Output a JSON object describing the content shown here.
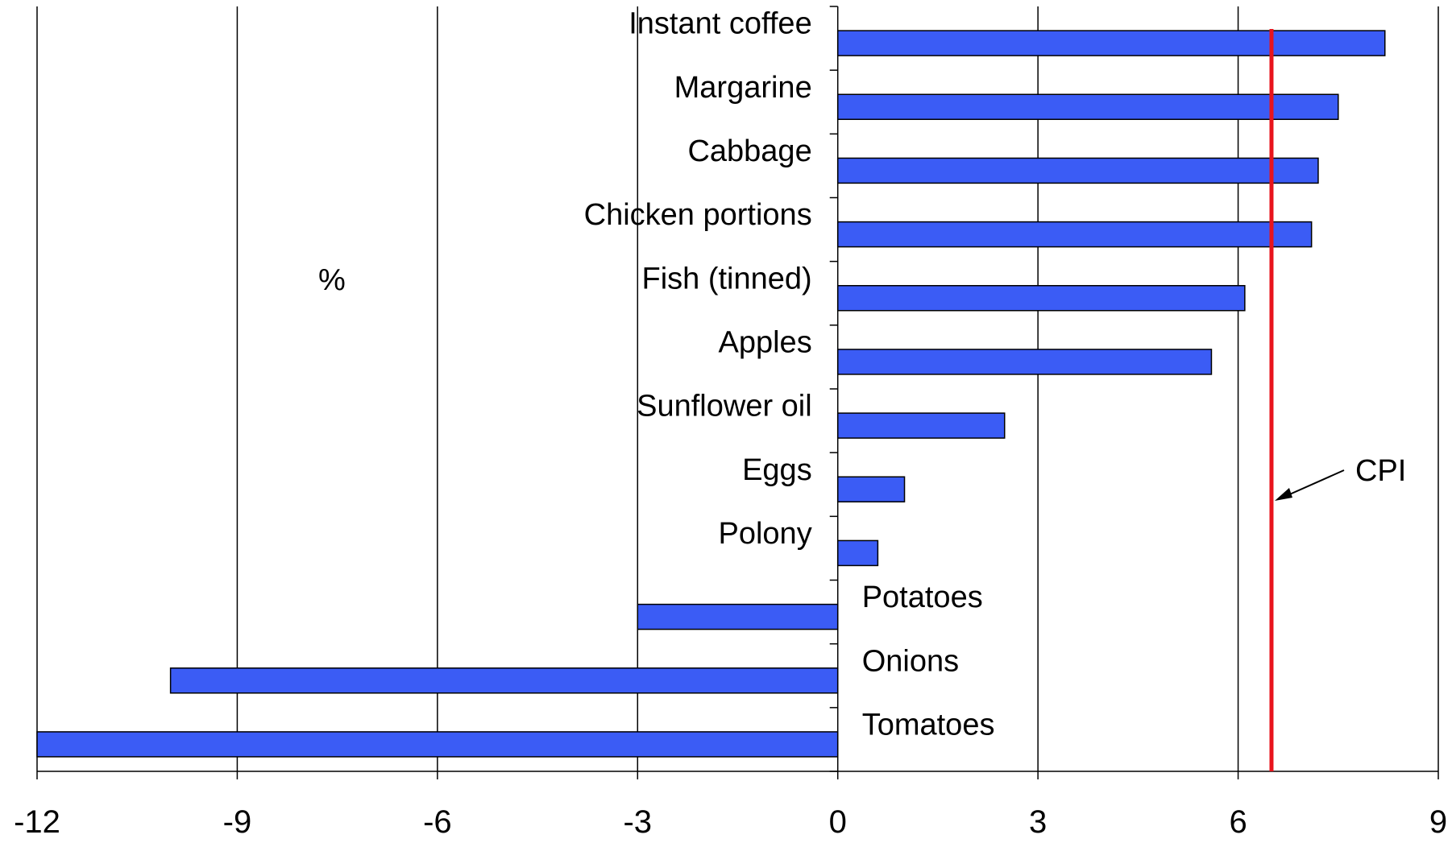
{
  "chart_data": {
    "type": "bar",
    "orientation": "horizontal",
    "title": "",
    "xlabel": "",
    "ylabel": "",
    "unit_label": "%",
    "categories": [
      "Instant coffee",
      "Margarine",
      "Cabbage",
      "Chicken portions",
      "Fish (tinned)",
      "Apples",
      "Sunflower oil",
      "Eggs",
      "Polony",
      "Potatoes",
      "Onions",
      "Tomatoes"
    ],
    "values": [
      8.2,
      7.5,
      7.2,
      7.1,
      6.1,
      5.6,
      2.5,
      1.0,
      0.6,
      -3.0,
      -10.0,
      -12.0
    ],
    "xlim": [
      -12,
      9
    ],
    "xticks": [
      -12,
      -9,
      -6,
      -3,
      0,
      3,
      6,
      9
    ],
    "xtick_labels": [
      "-12",
      "-9",
      "-6",
      "-3",
      "0",
      "3",
      "6",
      "9"
    ],
    "grid": "vertical",
    "bar_color": "#3b5cf5",
    "reference_line": {
      "label": "CPI",
      "value": 6.5,
      "color": "#e8141c"
    }
  }
}
